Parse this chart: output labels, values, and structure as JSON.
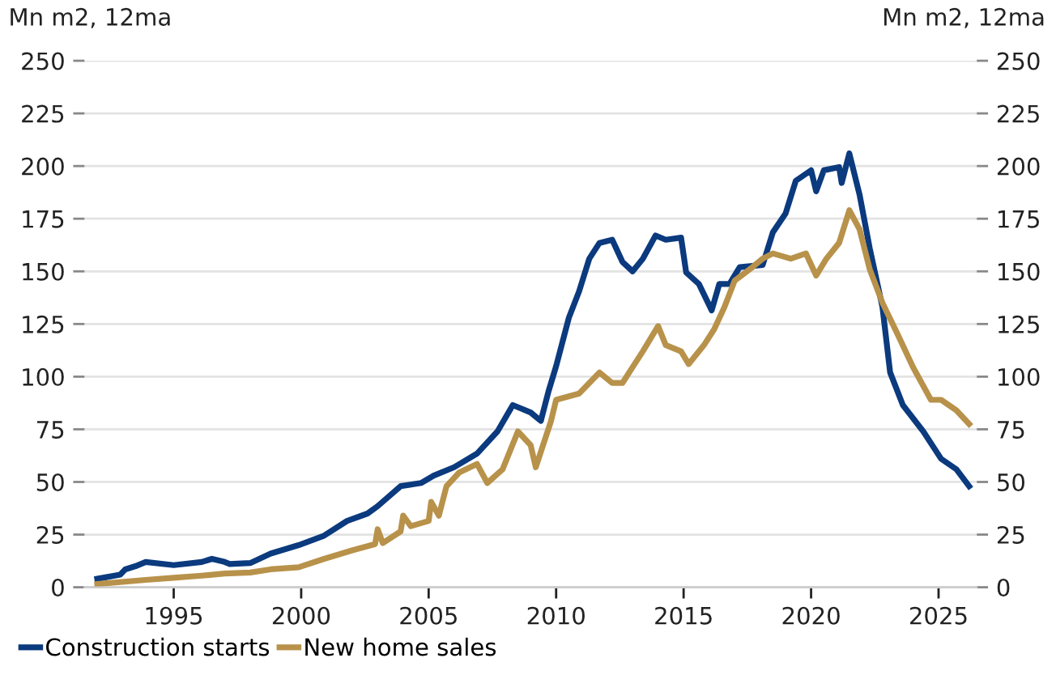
{
  "chart_data": {
    "type": "line",
    "ylabel": "Mn m2, 12ma",
    "y2label": "Mn m2, 12ma",
    "xlim": [
      1991.5,
      2026.5
    ],
    "xticks": [
      1995,
      2000,
      2005,
      2010,
      2015,
      2020,
      2025
    ],
    "ylim": [
      0,
      250
    ],
    "yticks": [
      0,
      25,
      50,
      75,
      100,
      125,
      150,
      175,
      200,
      225,
      250
    ],
    "y2lim": [
      0,
      250
    ],
    "y2ticks": [
      0,
      25,
      50,
      75,
      100,
      125,
      150,
      175,
      200,
      225,
      250
    ],
    "grid": "y",
    "legend": "bottom",
    "marker": "none",
    "line_style": "solid",
    "series": [
      {
        "name": "Construction starts",
        "color": "#0b3a7e",
        "x": [
          1992.0,
          1992.9,
          1993.1,
          1993.5,
          1993.9,
          1995.0,
          1996.1,
          1996.5,
          1997.0,
          1997.2,
          1998.0,
          1998.8,
          1999.9,
          2000.9,
          2001.8,
          2002.6,
          2003.0,
          2003.9,
          2004.7,
          2005.2,
          2006.0,
          2006.9,
          2007.7,
          2008.3,
          2009.0,
          2009.4,
          2009.7,
          2010.0,
          2010.5,
          2010.9,
          2011.3,
          2011.7,
          2012.2,
          2012.6,
          2013.0,
          2013.4,
          2013.9,
          2014.3,
          2014.9,
          2015.1,
          2015.6,
          2016.1,
          2016.4,
          2016.8,
          2017.2,
          2018.1,
          2018.5,
          2019.0,
          2019.4,
          2020.0,
          2020.2,
          2020.5,
          2021.1,
          2021.2,
          2021.5,
          2021.9,
          2022.3,
          2022.8,
          2023.1,
          2023.6,
          2024.4,
          2025.1,
          2025.7,
          2026.2
        ],
        "values": [
          4,
          6,
          8.5,
          10,
          12,
          10.5,
          12,
          13.5,
          12,
          11,
          11.5,
          16,
          20,
          24.5,
          31.5,
          35,
          38.5,
          48,
          49.5,
          53,
          57,
          63.5,
          74,
          86.5,
          83,
          79,
          93,
          105,
          128,
          140.5,
          156,
          163.5,
          165,
          154.5,
          150,
          156,
          167,
          165,
          166,
          149.5,
          144,
          131.5,
          144,
          144,
          152,
          153,
          168.5,
          177.5,
          193,
          198,
          188,
          198,
          199.5,
          192,
          206,
          186.5,
          161,
          133,
          102,
          86.5,
          74,
          61,
          56,
          48
        ]
      },
      {
        "name": "New home sales",
        "color": "#b8924a",
        "x": [
          1992.0,
          1993.9,
          1995.0,
          1996.1,
          1997.0,
          1998.0,
          1998.8,
          1999.9,
          2000.9,
          2002.0,
          2002.9,
          2003.0,
          2003.2,
          2003.9,
          2004.0,
          2004.3,
          2005.0,
          2005.1,
          2005.4,
          2005.7,
          2006.2,
          2006.9,
          2007.3,
          2007.9,
          2008.5,
          2009.0,
          2009.2,
          2009.8,
          2010.0,
          2010.9,
          2011.7,
          2012.2,
          2012.6,
          2013.0,
          2013.4,
          2014.0,
          2014.3,
          2014.9,
          2015.2,
          2015.8,
          2016.2,
          2016.6,
          2017.0,
          2017.7,
          2018.1,
          2018.5,
          2019.2,
          2019.8,
          2020.2,
          2020.6,
          2021.1,
          2021.5,
          2021.9,
          2022.3,
          2022.8,
          2023.4,
          2024.0,
          2024.7,
          2025.1,
          2025.7,
          2026.2
        ],
        "values": [
          1.5,
          3.5,
          4.5,
          5.5,
          6.5,
          7,
          8.5,
          9.5,
          13.5,
          17.5,
          20.5,
          27.5,
          21,
          26.5,
          34,
          29,
          31.5,
          40.5,
          34,
          48,
          54.5,
          58.5,
          49.5,
          56,
          74,
          67.5,
          57,
          79,
          89,
          92,
          102,
          97,
          97,
          104.5,
          112,
          124,
          115,
          112,
          106,
          115,
          122.5,
          133,
          145.5,
          152,
          156,
          158.5,
          156,
          158.5,
          148,
          156,
          163.5,
          179,
          170,
          151,
          135,
          120,
          104.5,
          89,
          89,
          84,
          77.5
        ]
      }
    ]
  }
}
